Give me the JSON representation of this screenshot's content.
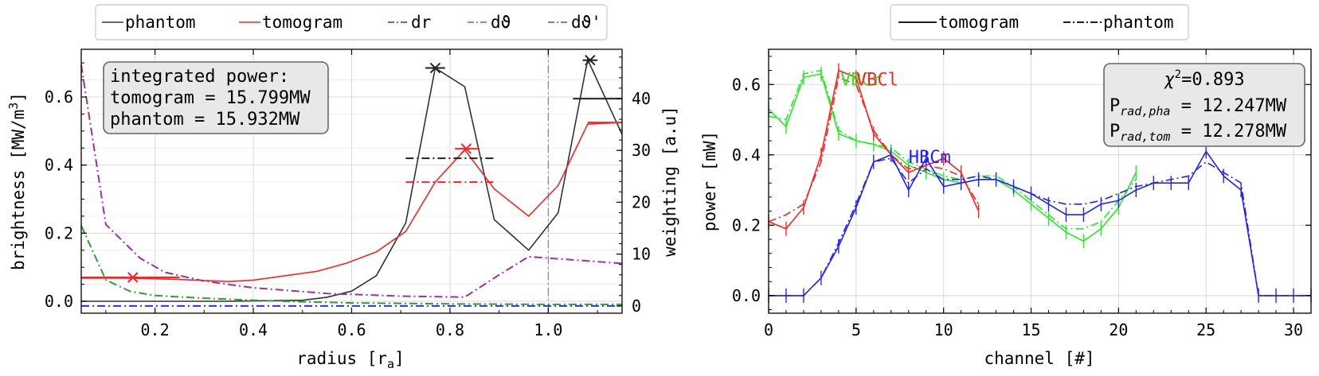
{
  "chart_data": [
    {
      "type": "line",
      "xlabel": "radius [r",
      "xlabel_sub": "a",
      "xlabel_end": "]",
      "ylabel": "brightness [MW/m",
      "ylabel_sup": "3",
      "ylabel_end": "]",
      "y2label": "weighting [a.u]",
      "xlim": [
        0.05,
        1.15
      ],
      "ylim": [
        -0.035,
        0.74
      ],
      "y2lim": [
        -1.4,
        49.5
      ],
      "xticks": [
        0.2,
        0.4,
        0.6,
        0.8,
        1.0
      ],
      "xtick_labels": [
        "0.2",
        "0.4",
        "0.6",
        "0.8",
        "1.0"
      ],
      "yticks": [
        0.0,
        0.2,
        0.4,
        0.6
      ],
      "ytick_labels": [
        "0.0",
        "0.2",
        "0.4",
        "0.6"
      ],
      "y2ticks": [
        0,
        10,
        20,
        30,
        40
      ],
      "y2tick_labels": [
        "0",
        "10",
        "20",
        "30",
        "40"
      ],
      "vline_x": 1.0,
      "grid": true,
      "legend": {
        "placement": "top, above plot",
        "entries": [
          {
            "label": "phantom",
            "color": "#333333",
            "style": "solid"
          },
          {
            "label": "tomogram",
            "color": "#ff2222",
            "style": "solid"
          },
          {
            "label": "dr",
            "color": "#2233ff",
            "style": "dashdot"
          },
          {
            "label": "dϑ",
            "color": "#2ca02c",
            "style": "dashdot"
          },
          {
            "label": "dϑ'",
            "color": "#9b30a0",
            "style": "dashdot"
          }
        ]
      },
      "annotation": {
        "lines": [
          "integrated power:",
          "tomogram = 15.799MW",
          "phantom = 15.932MW"
        ]
      },
      "series": [
        {
          "name": "phantom",
          "color": "#333333",
          "axis": "left",
          "style": "solid",
          "x": [
            0.05,
            0.2,
            0.35,
            0.5,
            0.55,
            0.6,
            0.65,
            0.71,
            0.77,
            0.83,
            0.89,
            0.96,
            1.02,
            1.08,
            1.15
          ],
          "y": [
            0.0,
            0.0,
            0.0,
            0.003,
            0.012,
            0.03,
            0.075,
            0.23,
            0.685,
            0.63,
            0.24,
            0.15,
            0.26,
            0.71,
            0.49
          ]
        },
        {
          "name": "tomogram",
          "color": "#ff2222",
          "axis": "left",
          "style": "solid",
          "x": [
            0.05,
            0.15,
            0.25,
            0.35,
            0.4,
            0.45,
            0.53,
            0.59,
            0.65,
            0.71,
            0.77,
            0.83,
            0.89,
            0.96,
            1.02,
            1.08,
            1.15
          ],
          "y": [
            0.068,
            0.068,
            0.064,
            0.058,
            0.062,
            0.072,
            0.088,
            0.112,
            0.145,
            0.205,
            0.35,
            0.445,
            0.33,
            0.25,
            0.34,
            0.52,
            0.525
          ]
        },
        {
          "name": "dr",
          "color": "#2233ff",
          "axis": "right",
          "style": "dashdot",
          "x": [
            0.05,
            1.15
          ],
          "y": [
            0.0,
            0.0
          ]
        },
        {
          "name": "dϑ",
          "color": "#2ca02c",
          "axis": "right",
          "style": "dashdot",
          "x": [
            0.05,
            0.1,
            0.15,
            0.2,
            0.3,
            0.4,
            0.5,
            0.6,
            0.8,
            1.0,
            1.15
          ],
          "y": [
            15.5,
            5.0,
            2.8,
            2.0,
            1.5,
            1.1,
            0.8,
            0.6,
            0.4,
            0.3,
            0.3
          ]
        },
        {
          "name": "dϑ'",
          "color": "#9b30a0",
          "axis": "right",
          "style": "dashdot",
          "x": [
            0.05,
            0.1,
            0.17,
            0.22,
            0.3,
            0.4,
            0.55,
            0.7,
            0.83,
            0.9,
            0.96,
            1.15
          ],
          "y": [
            46.5,
            15.7,
            9.2,
            6.5,
            4.8,
            3.5,
            2.4,
            1.9,
            1.7,
            6.0,
            9.5,
            8.2
          ]
        }
      ],
      "markers": [
        {
          "color": "#ff2222",
          "x": 0.155,
          "y": 0.07,
          "xerr": [
            0.05,
            0.25
          ]
        },
        {
          "color": "#222222",
          "x": 0.77,
          "y": 0.685,
          "xerr": [
            0.75,
            0.79
          ]
        },
        {
          "color": "#ff2222",
          "x": 0.833,
          "y": 0.448,
          "xerr": [
            0.81,
            0.86
          ]
        },
        {
          "color": "#222222",
          "x": 1.085,
          "y": 0.708,
          "xerr": [
            1.07,
            1.1
          ]
        }
      ],
      "steps": [
        {
          "color": "#222222",
          "style": "dashdot",
          "x": [
            0.71,
            0.89
          ],
          "y": 0.42
        },
        {
          "color": "#ff2222",
          "style": "dashdot",
          "x": [
            0.71,
            0.89
          ],
          "y": 0.35
        },
        {
          "color": "#222222",
          "style": "solid",
          "x": [
            1.05,
            1.15
          ],
          "y": 0.595
        },
        {
          "color": "#ff2222",
          "style": "solid",
          "x": [
            1.08,
            1.15
          ],
          "y": 0.525
        },
        {
          "color": "#ff2222",
          "style": "solid",
          "x": [
            0.05,
            0.25
          ],
          "y": 0.07
        }
      ]
    },
    {
      "type": "line",
      "xlabel": "channel [#]",
      "ylabel": "power [mW]",
      "xlim": [
        0,
        31
      ],
      "ylim": [
        -0.05,
        0.7
      ],
      "xticks": [
        0,
        5,
        10,
        15,
        20,
        25,
        30
      ],
      "xtick_labels": [
        "0",
        "5",
        "10",
        "15",
        "20",
        "25",
        "30"
      ],
      "yticks": [
        0.0,
        0.2,
        0.4,
        0.6
      ],
      "ytick_labels": [
        "0.0",
        "0.2",
        "0.4",
        "0.6"
      ],
      "grid": true,
      "legend": {
        "placement": "top, above plot",
        "entries": [
          {
            "label": "tomogram",
            "color": "#000000",
            "style": "solid"
          },
          {
            "label": "phantom",
            "color": "#000000",
            "style": "dashdot"
          }
        ]
      },
      "annotation": {
        "chi_label": "χ",
        "chi_sup": "2",
        "chi_value": "=0.893",
        "lines": [
          {
            "main": "P",
            "sub": "rad,pha",
            "rest": " = 12.247MW"
          },
          {
            "main": "P",
            "sub": "rad,tom",
            "rest": " = 12.278MW"
          }
        ]
      },
      "labels": [
        {
          "text": "VBCr",
          "color": "#22ee22",
          "x": 4.1,
          "y": 0.615
        },
        {
          "text": "VBCl",
          "color": "#ff2222",
          "x": 5.0,
          "y": 0.615
        },
        {
          "text": "HBCm",
          "color": "#2222ff",
          "x": 8.0,
          "y": 0.395
        }
      ],
      "series": [
        {
          "name": "VBCr tomogram",
          "color": "#22ee22",
          "style": "solid",
          "x": [
            0,
            1,
            2,
            3,
            4,
            5,
            6,
            7,
            8,
            9,
            10,
            11,
            12,
            13,
            14,
            15,
            16,
            17,
            18,
            19,
            20,
            21
          ],
          "y": [
            0.53,
            0.48,
            0.62,
            0.63,
            0.46,
            0.44,
            0.43,
            0.41,
            0.37,
            0.35,
            0.33,
            0.32,
            0.33,
            0.33,
            0.3,
            0.26,
            0.22,
            0.18,
            0.155,
            0.19,
            0.25,
            0.35
          ]
        },
        {
          "name": "VBCr phantom",
          "color": "#22ee22",
          "style": "dashdot",
          "x": [
            0,
            1,
            2,
            3,
            4,
            5,
            6,
            7,
            8,
            9,
            10,
            11,
            12,
            13,
            14,
            15,
            16,
            17,
            18,
            19,
            20,
            21
          ],
          "y": [
            0.51,
            0.5,
            0.63,
            0.64,
            0.47,
            0.44,
            0.43,
            0.42,
            0.38,
            0.36,
            0.34,
            0.33,
            0.34,
            0.34,
            0.31,
            0.27,
            0.23,
            0.19,
            0.19,
            0.21,
            0.27,
            0.33
          ]
        },
        {
          "name": "VBCl tomogram",
          "color": "#ff2222",
          "style": "solid",
          "x": [
            0,
            1,
            2,
            3,
            4,
            5,
            6,
            7,
            8,
            9,
            10,
            11,
            12
          ],
          "y": [
            0.21,
            0.19,
            0.25,
            0.4,
            0.64,
            0.62,
            0.46,
            0.4,
            0.35,
            0.37,
            0.39,
            0.35,
            0.24
          ]
        },
        {
          "name": "VBCl phantom",
          "color": "#ff2222",
          "style": "dashdot",
          "x": [
            0,
            1,
            2,
            3,
            4,
            5,
            6,
            7,
            8,
            9,
            10,
            11,
            12
          ],
          "y": [
            0.21,
            0.23,
            0.26,
            0.38,
            0.62,
            0.6,
            0.47,
            0.4,
            0.36,
            0.37,
            0.36,
            0.34,
            0.26
          ]
        },
        {
          "name": "HBCm tomogram",
          "color": "#2222ff",
          "style": "solid",
          "x": [
            0,
            1,
            2,
            3,
            4,
            5,
            6,
            7,
            8,
            9,
            10,
            11,
            12,
            13,
            14,
            15,
            16,
            17,
            18,
            19,
            20,
            21,
            22,
            23,
            24,
            25,
            26,
            27,
            28,
            29,
            30,
            31
          ],
          "y": [
            0,
            0,
            0,
            0.05,
            0.14,
            0.25,
            0.38,
            0.4,
            0.3,
            0.39,
            0.31,
            0.32,
            0.33,
            0.33,
            0.31,
            0.29,
            0.26,
            0.23,
            0.23,
            0.26,
            0.27,
            0.3,
            0.32,
            0.32,
            0.32,
            0.41,
            0.34,
            0.3,
            0,
            0,
            0,
            0
          ]
        },
        {
          "name": "HBCm phantom",
          "color": "#2222ff",
          "style": "dashdot",
          "x": [
            0,
            1,
            2,
            3,
            4,
            5,
            6,
            7,
            8,
            9,
            10,
            11,
            12,
            13,
            14,
            15,
            16,
            17,
            18,
            19,
            20,
            21,
            22,
            23,
            24,
            25,
            26,
            27,
            28,
            29,
            30,
            31
          ],
          "y": [
            0,
            0,
            0,
            0.05,
            0.15,
            0.26,
            0.38,
            0.39,
            0.32,
            0.36,
            0.33,
            0.33,
            0.34,
            0.33,
            0.31,
            0.29,
            0.27,
            0.26,
            0.26,
            0.27,
            0.29,
            0.31,
            0.32,
            0.33,
            0.34,
            0.38,
            0.35,
            0.32,
            0,
            0,
            0,
            0
          ]
        }
      ]
    }
  ]
}
